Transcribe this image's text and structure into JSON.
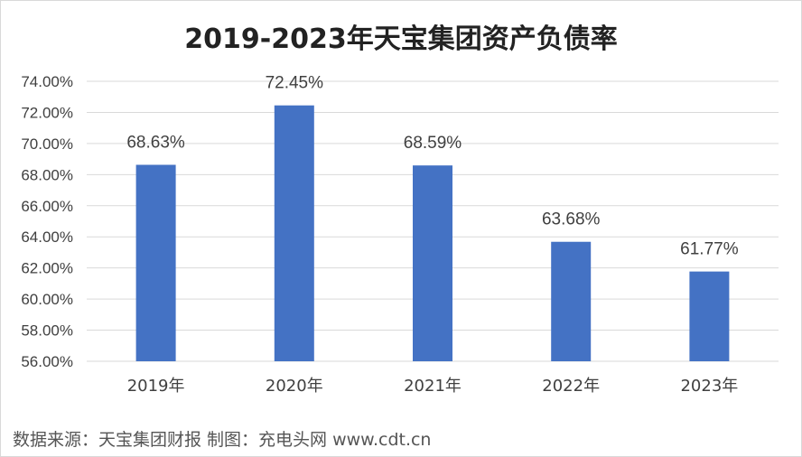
{
  "chart_data": {
    "type": "bar",
    "title": "2019-2023年天宝集团资产负债率",
    "categories": [
      "2019年",
      "2020年",
      "2021年",
      "2022年",
      "2023年"
    ],
    "values": [
      68.63,
      72.45,
      68.59,
      63.68,
      61.77
    ],
    "data_labels": [
      "68.63%",
      "72.45%",
      "68.59%",
      "63.68%",
      "61.77%"
    ],
    "ylim": [
      56,
      74
    ],
    "yticks": [
      "56.00%",
      "58.00%",
      "60.00%",
      "62.00%",
      "64.00%",
      "66.00%",
      "68.00%",
      "70.00%",
      "72.00%",
      "74.00%"
    ],
    "grid": true,
    "bar_color": "#4472c4",
    "xlabel": "",
    "ylabel": ""
  },
  "source_note": "数据来源：天宝集团财报   制图：充电头网 www.cdt.cn"
}
